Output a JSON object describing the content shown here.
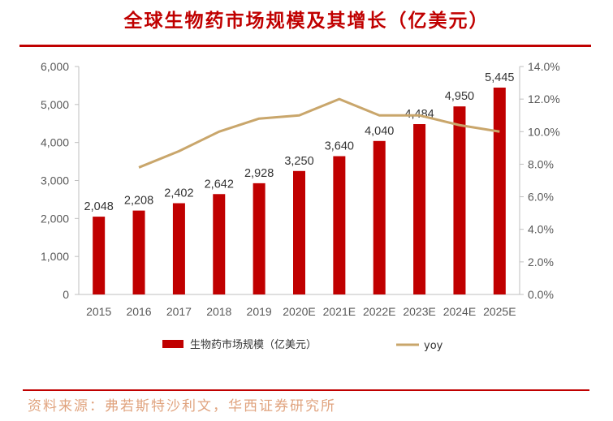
{
  "header": {
    "title": "全球生物药市场规模及其增长（亿美元）"
  },
  "footer": {
    "source": "资料来源：弗若斯特沙利文，华西证券研究所"
  },
  "chart_data": {
    "type": "bar",
    "title": "全球生物药市场规模及其增长（亿美元）",
    "categories": [
      "2015",
      "2016",
      "2017",
      "2018",
      "2019",
      "2020E",
      "2021E",
      "2022E",
      "2023E",
      "2024E",
      "2025E"
    ],
    "series": [
      {
        "name": "生物药市场规模（亿美元）",
        "type": "bar",
        "axis": "left",
        "color": "#c00000",
        "values": [
          2048,
          2208,
          2402,
          2642,
          2928,
          3250,
          3640,
          4040,
          4484,
          4950,
          5445
        ],
        "value_labels": [
          "2,048",
          "2,208",
          "2,402",
          "2,642",
          "2,928",
          "3,250",
          "3,640",
          "4,040",
          "4,484",
          "4,950",
          "5,445"
        ]
      },
      {
        "name": "yoy",
        "type": "line",
        "axis": "right",
        "color": "#c9a66b",
        "values": [
          null,
          7.8,
          8.8,
          10.0,
          10.8,
          11.0,
          12.0,
          11.0,
          11.0,
          10.4,
          10.0
        ]
      }
    ],
    "y_left": {
      "min": 0,
      "max": 6000,
      "ticks": [
        "0",
        "1,000",
        "2,000",
        "3,000",
        "4,000",
        "5,000",
        "6,000"
      ]
    },
    "y_right": {
      "min": 0,
      "max": 14,
      "ticks": [
        "0.0%",
        "2.0%",
        "4.0%",
        "6.0%",
        "8.0%",
        "10.0%",
        "12.0%",
        "14.0%"
      ]
    },
    "grid": false,
    "legend_position": "bottom"
  }
}
